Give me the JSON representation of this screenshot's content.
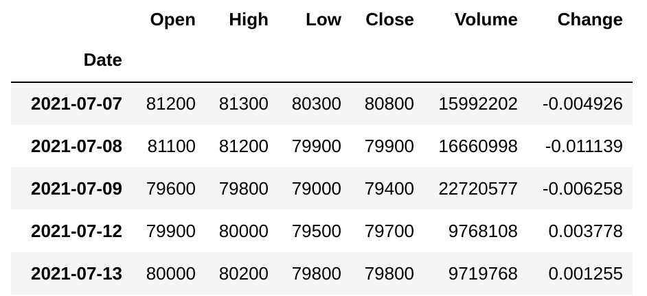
{
  "table": {
    "columns": [
      "Open",
      "High",
      "Low",
      "Close",
      "Volume",
      "Change"
    ],
    "index_name": "Date",
    "rows": [
      {
        "date": "2021-07-07",
        "values": [
          "81200",
          "81300",
          "80300",
          "80800",
          "15992202",
          "-0.004926"
        ]
      },
      {
        "date": "2021-07-08",
        "values": [
          "81100",
          "81200",
          "79900",
          "79900",
          "16660998",
          "-0.011139"
        ]
      },
      {
        "date": "2021-07-09",
        "values": [
          "79600",
          "79800",
          "79000",
          "79400",
          "22720577",
          "-0.006258"
        ]
      },
      {
        "date": "2021-07-12",
        "values": [
          "79900",
          "80000",
          "79500",
          "79700",
          "9768108",
          "0.003778"
        ]
      },
      {
        "date": "2021-07-13",
        "values": [
          "80000",
          "80200",
          "79800",
          "79800",
          "9719768",
          "0.001255"
        ]
      }
    ]
  },
  "colors": {
    "text": "#000000",
    "stripe": "#f5f5f5",
    "background": "#ffffff",
    "header_rule": "#000000"
  }
}
